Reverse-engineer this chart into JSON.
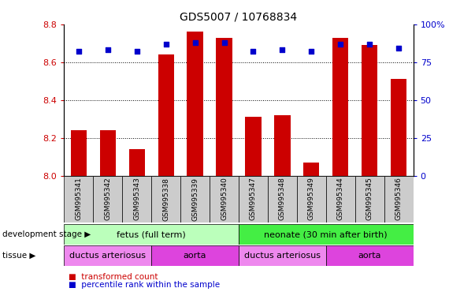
{
  "title": "GDS5007 / 10768834",
  "samples": [
    "GSM995341",
    "GSM995342",
    "GSM995343",
    "GSM995338",
    "GSM995339",
    "GSM995340",
    "GSM995347",
    "GSM995348",
    "GSM995349",
    "GSM995344",
    "GSM995345",
    "GSM995346"
  ],
  "bar_values": [
    8.24,
    8.24,
    8.14,
    8.64,
    8.76,
    8.73,
    8.31,
    8.32,
    8.07,
    8.73,
    8.69,
    8.51
  ],
  "bar_bottom": 8.0,
  "percentile_values": [
    82,
    83,
    82,
    87,
    88,
    88,
    82,
    83,
    82,
    87,
    87,
    84
  ],
  "ylim_left": [
    8.0,
    8.8
  ],
  "ylim_right": [
    0,
    100
  ],
  "yticks_left": [
    8.0,
    8.2,
    8.4,
    8.6,
    8.8
  ],
  "yticks_right": [
    0,
    25,
    50,
    75,
    100
  ],
  "bar_color": "#cc0000",
  "dot_color": "#0000cc",
  "bar_width": 0.55,
  "dev_stage_groups": [
    {
      "label": "fetus (full term)",
      "start": 0,
      "end": 5,
      "color": "#bbffbb"
    },
    {
      "label": "neonate (30 min after birth)",
      "start": 6,
      "end": 11,
      "color": "#44ee44"
    }
  ],
  "tissue_groups": [
    {
      "label": "ductus arteriosus",
      "start": 0,
      "end": 2,
      "color": "#ee88ee"
    },
    {
      "label": "aorta",
      "start": 3,
      "end": 5,
      "color": "#dd44dd"
    },
    {
      "label": "ductus arteriosus",
      "start": 6,
      "end": 8,
      "color": "#ee88ee"
    },
    {
      "label": "aorta",
      "start": 9,
      "end": 11,
      "color": "#dd44dd"
    }
  ],
  "tick_color_left": "#cc0000",
  "tick_color_right": "#0000cc",
  "ytick_labels_right": [
    "0",
    "25",
    "50",
    "75",
    "100%"
  ]
}
